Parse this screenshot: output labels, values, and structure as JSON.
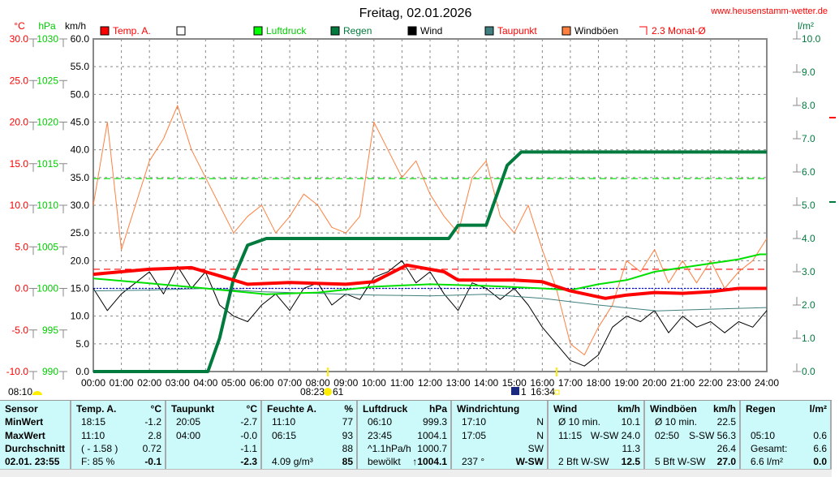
{
  "title": "Freitag, 02.01.2026",
  "site": "www.heusenstamm-wetter.de",
  "colors": {
    "temp": "#ff0000",
    "pressure": "#00e000",
    "rain": "#007a3d",
    "wind": "#000000",
    "dew": "#3f7f7f",
    "gust": "#ff8040",
    "avg": "#ff0000",
    "table_bg": "#ccfafa"
  },
  "legend": [
    {
      "label": "Temp. A.",
      "color": "#ff0000",
      "text_color": "#ff0000"
    },
    {
      "label": "",
      "color": "#ffffff",
      "text_color": "#000000"
    },
    {
      "label": "Luftdruck",
      "color": "#00ff00",
      "text_color": "#00cc00"
    },
    {
      "label": "Regen",
      "color": "#007a3d",
      "text_color": "#007a3d"
    },
    {
      "label": "Wind",
      "color": "#000000",
      "text_color": "#000000"
    },
    {
      "label": "Taupunkt",
      "color": "#3f7f7f",
      "text_color": "#ff0000"
    },
    {
      "label": "Windböen",
      "color": "#ff8040",
      "text_color": "#000000"
    },
    {
      "label": "2.3 Monat-Ø",
      "color": "none",
      "text_color": "#ff0000"
    }
  ],
  "chart_data": {
    "type": "line",
    "title": "Freitag, 02.01.2026",
    "x_ticks": [
      "00:00",
      "01:00",
      "02:00",
      "03:00",
      "04:00",
      "05:00",
      "06:00",
      "07:00",
      "08:00",
      "09:00",
      "10:00",
      "11:00",
      "12:00",
      "13:00",
      "14:00",
      "15:00",
      "16:00",
      "17:00",
      "18:00",
      "19:00",
      "20:00",
      "21:00",
      "22:00",
      "23:00",
      "24:00"
    ],
    "axes": {
      "temp": {
        "unit": "°C",
        "range": [
          -10,
          30
        ],
        "ticks": [
          "30.0",
          "25.0",
          "20.0",
          "15.0",
          "10.0",
          "5.0",
          "0.0",
          "-5.0",
          "-10.0"
        ]
      },
      "pressure": {
        "unit": "hPa",
        "range": [
          990,
          1030
        ],
        "ticks": [
          "1030",
          "1025",
          "1020",
          "1015",
          "1010",
          "1005",
          "1000",
          "995",
          "990"
        ]
      },
      "wind": {
        "unit": "km/h",
        "range": [
          0,
          60
        ],
        "ticks": [
          "60.0",
          "55.0",
          "50.0",
          "45.0",
          "40.0",
          "35.0",
          "30.0",
          "25.0",
          "20.0",
          "15.0",
          "10.0",
          "5.0",
          "0.0"
        ]
      },
      "rain": {
        "unit": "l/m²",
        "range": [
          0,
          10
        ],
        "ticks": [
          "10.0",
          "9.0",
          "8.0",
          "7.0",
          "6.0",
          "5.0",
          "4.0",
          "3.0",
          "2.0",
          "1.0",
          "0.0"
        ]
      }
    },
    "grid": true,
    "reference_lines": [
      {
        "axis": "temp",
        "value": 2.3,
        "color": "#ff0000"
      },
      {
        "axis": "pressure",
        "value": 1013.2,
        "color": "#00e000"
      },
      {
        "axis": "temp",
        "value": 0,
        "color": "#0000ff"
      }
    ],
    "series": [
      {
        "name": "Windböen",
        "axis": "wind",
        "color": "#ff8040",
        "x": [
          "00:00",
          "00:30",
          "01:00",
          "01:30",
          "02:00",
          "02:30",
          "03:00",
          "03:30",
          "04:00",
          "04:30",
          "05:00",
          "05:30",
          "06:00",
          "06:30",
          "07:00",
          "07:30",
          "08:00",
          "08:30",
          "09:00",
          "09:30",
          "10:00",
          "10:30",
          "11:00",
          "11:30",
          "12:00",
          "12:30",
          "13:00",
          "13:30",
          "14:00",
          "14:30",
          "15:00",
          "15:30",
          "16:00",
          "16:30",
          "17:00",
          "17:30",
          "18:00",
          "18:30",
          "19:00",
          "19:30",
          "20:00",
          "20:30",
          "21:00",
          "21:30",
          "22:00",
          "22:30",
          "23:00",
          "23:30",
          "24:00"
        ],
        "values": [
          30,
          45,
          22,
          30,
          38,
          42,
          48,
          40,
          35,
          30,
          25,
          28,
          30,
          25,
          28,
          32,
          30,
          26,
          25,
          28,
          45,
          40,
          35,
          38,
          32,
          28,
          25,
          35,
          38,
          28,
          25,
          30,
          22,
          15,
          5,
          3,
          8,
          12,
          20,
          18,
          22,
          16,
          20,
          16,
          20,
          15,
          18,
          20,
          24
        ]
      },
      {
        "name": "Wind",
        "axis": "wind",
        "color": "#000000",
        "x": [
          "00:00",
          "00:30",
          "01:00",
          "01:30",
          "02:00",
          "02:30",
          "03:00",
          "03:30",
          "04:00",
          "04:30",
          "05:00",
          "05:30",
          "06:00",
          "06:30",
          "07:00",
          "07:30",
          "08:00",
          "08:30",
          "09:00",
          "09:30",
          "10:00",
          "10:30",
          "11:00",
          "11:30",
          "12:00",
          "12:30",
          "13:00",
          "13:30",
          "14:00",
          "14:30",
          "15:00",
          "15:30",
          "16:00",
          "16:30",
          "17:00",
          "17:30",
          "18:00",
          "18:30",
          "19:00",
          "19:30",
          "20:00",
          "20:30",
          "21:00",
          "21:30",
          "22:00",
          "22:30",
          "23:00",
          "23:30",
          "24:00"
        ],
        "values": [
          15,
          11,
          14,
          16,
          18,
          14,
          19,
          15,
          18,
          12,
          10,
          9,
          12,
          14,
          11,
          15,
          16,
          12,
          14,
          13,
          17,
          18,
          20,
          16,
          18,
          14,
          11,
          16,
          15,
          13,
          15,
          12,
          8,
          5,
          2,
          1,
          3,
          8,
          10,
          9,
          11,
          7,
          10,
          8,
          9,
          7,
          9,
          8,
          11
        ]
      },
      {
        "name": "Taupunkt",
        "axis": "temp",
        "color": "#3f7f7f",
        "x": [
          "00:00",
          "02:00",
          "04:00",
          "06:00",
          "08:00",
          "10:00",
          "12:00",
          "14:00",
          "16:00",
          "17:00",
          "18:00",
          "20:05",
          "22:00",
          "24:00"
        ],
        "values": [
          -0.3,
          -0.2,
          0,
          -0.4,
          -0.6,
          -0.8,
          -0.9,
          -0.7,
          -1.2,
          -1.6,
          -2.0,
          -2.7,
          -2.5,
          -2.3
        ]
      },
      {
        "name": "Luftdruck",
        "axis": "pressure",
        "color": "#00e000",
        "x": [
          "00:00",
          "02:00",
          "04:00",
          "06:10",
          "08:00",
          "10:00",
          "12:00",
          "14:00",
          "16:00",
          "17:00",
          "18:00",
          "19:00",
          "20:00",
          "21:00",
          "22:00",
          "23:00",
          "23:45",
          "24:00"
        ],
        "values": [
          1001.2,
          1000.6,
          1000.0,
          999.3,
          999.5,
          1000.2,
          1000.5,
          1000.3,
          1000.0,
          999.8,
          1000.5,
          1001.0,
          1002.0,
          1002.5,
          1003.0,
          1003.5,
          1004.1,
          1004.1
        ]
      },
      {
        "name": "Regen",
        "axis": "rain",
        "color": "#007a3d",
        "x": [
          "00:00",
          "04:05",
          "04:30",
          "05:00",
          "05:30",
          "06:10",
          "12:40",
          "13:00",
          "14:00",
          "14:20",
          "14:45",
          "15:15",
          "24:00"
        ],
        "values": [
          0,
          0,
          1.0,
          2.8,
          3.8,
          4.0,
          4.0,
          4.4,
          4.4,
          5.2,
          6.2,
          6.6,
          6.6
        ]
      },
      {
        "name": "Temp. A.",
        "axis": "temp",
        "color": "#ff0000",
        "x": [
          "00:00",
          "02:00",
          "03:30",
          "04:30",
          "05:30",
          "07:00",
          "09:00",
          "10:00",
          "11:10",
          "12:30",
          "13:00",
          "15:00",
          "16:00",
          "17:00",
          "18:15",
          "19:00",
          "20:00",
          "21:00",
          "22:00",
          "23:00",
          "24:00"
        ],
        "values": [
          1.7,
          2.3,
          2.5,
          1.5,
          0.5,
          0.7,
          0.5,
          0.8,
          2.8,
          2.0,
          1.0,
          1.0,
          0.8,
          -0.3,
          -1.2,
          -0.8,
          -0.5,
          -0.6,
          -0.4,
          0,
          0
        ]
      }
    ]
  },
  "astro": {
    "sunrise_label": "08:10",
    "sun_label": "08:23",
    "sun_suffix": "61",
    "moon_label": "1",
    "moon_time": "16:34"
  },
  "table": [
    {
      "head": [
        "Sensor",
        ""
      ],
      "rows": [
        [
          "MinWert",
          ""
        ],
        [
          "MaxWert",
          ""
        ],
        [
          "Durchschnitt",
          ""
        ],
        [
          "02.01. 23:55",
          ""
        ]
      ]
    },
    {
      "head": [
        "Temp. A.",
        "°C"
      ],
      "rows": [
        [
          "18:15",
          "-1.2"
        ],
        [
          "11:10",
          "2.8"
        ],
        [
          "( - 1.58 )",
          "0.72"
        ],
        [
          "F: 85 %",
          "-0.1"
        ]
      ]
    },
    {
      "head": [
        "Taupunkt",
        "°C"
      ],
      "rows": [
        [
          "20:05",
          "-2.7"
        ],
        [
          "04:00",
          "-0.0"
        ],
        [
          "",
          "-1.1"
        ],
        [
          "",
          "-2.3"
        ]
      ]
    },
    {
      "head": [
        "Feuchte A.",
        "%"
      ],
      "rows": [
        [
          "11:10",
          "77"
        ],
        [
          "06:15",
          "93"
        ],
        [
          "",
          "88"
        ],
        [
          "4.09 g/m³",
          "85"
        ]
      ]
    },
    {
      "head": [
        "Luftdruck",
        "hPa"
      ],
      "rows": [
        [
          "06:10",
          "999.3"
        ],
        [
          "23:45",
          "1004.1"
        ],
        [
          "^1.1hPa/h",
          "1000.7"
        ],
        [
          "bewölkt",
          "↑1004.1"
        ]
      ]
    },
    {
      "head": [
        "Windrichtung",
        ""
      ],
      "rows": [
        [
          "17:10",
          "N"
        ],
        [
          "17:05",
          "N"
        ],
        [
          "",
          "SW"
        ],
        [
          "237 °",
          "W-SW"
        ]
      ]
    },
    {
      "head": [
        "Wind",
        "km/h"
      ],
      "rows": [
        [
          "Ø 10 min.",
          "10.1"
        ],
        [
          "11:15",
          "W-SW 24.0"
        ],
        [
          "",
          "11.3"
        ],
        [
          "2 Bft W-SW",
          "12.5"
        ]
      ]
    },
    {
      "head": [
        "Windböen",
        "km/h"
      ],
      "rows": [
        [
          "Ø 10 min.",
          "22.5"
        ],
        [
          "02:50",
          "S-SW 56.3"
        ],
        [
          "",
          "26.4"
        ],
        [
          "5 Bft W-SW",
          "27.0"
        ]
      ]
    },
    {
      "head": [
        "Regen",
        "l/m²"
      ],
      "rows": [
        [
          "",
          ""
        ],
        [
          "05:10",
          "0.6"
        ],
        [
          "Gesamt:",
          "6.6"
        ],
        [
          "6.6 l/m²",
          "0.0"
        ]
      ]
    }
  ]
}
